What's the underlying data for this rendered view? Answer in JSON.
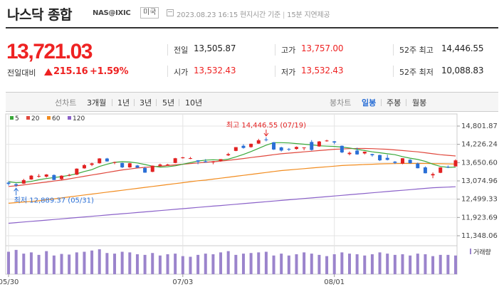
{
  "header": {
    "title": "나스닥 종합",
    "code": "NAS@IXIC",
    "country": "미국",
    "date_icon": "calendar-icon",
    "timestamp": "2023.08.23 16:15 현지시간 기준",
    "delay": "15분 지연제공"
  },
  "quote": {
    "price": "13,721.03",
    "change_label": "전일대비",
    "change_value": "215.16",
    "change_pct": "+1.59%",
    "direction": "up",
    "up_color": "#e22222"
  },
  "stats": {
    "prev_label": "전일",
    "prev_value": "13,505.87",
    "high_label": "고가",
    "high_value": "13,757.00",
    "w52high_label": "52주 최고",
    "w52high_value": "14,446.55",
    "open_label": "시가",
    "open_value": "13,532.43",
    "low_label": "저가",
    "low_value": "13,532.43",
    "w52low_label": "52주 최저",
    "w52low_value": "10,088.83"
  },
  "tabs": {
    "line_label": "선차트",
    "periods": [
      "3개월",
      "1년",
      "3년",
      "5년",
      "10년"
    ],
    "candle_label": "봉차트",
    "candles": [
      "일봉",
      "주봉",
      "월봉"
    ],
    "active_candle": "일봉"
  },
  "chart_data": {
    "type": "candlestick",
    "legend": [
      {
        "name": "5",
        "color": "#3aa83a"
      },
      {
        "name": "20",
        "color": "#e0483d"
      },
      {
        "name": "60",
        "color": "#f28c1f"
      },
      {
        "name": "120",
        "color": "#8b62c9"
      }
    ],
    "y_ticks": [
      "14,801.87",
      "14,226.24",
      "13,650.60",
      "13,074.96",
      "12,499.33",
      "11,923.69",
      "11,348.06"
    ],
    "ylim": [
      11348.06,
      14801.87
    ],
    "x_ticks": [
      "05/30",
      "07/03",
      "08/01"
    ],
    "annotations": {
      "high": "최고 14,446.55 (07/19)",
      "low": "최저 12,889.37 (05/31)"
    },
    "volume_label": "거래량",
    "candles": [
      {
        "d": "05/30",
        "o": 13020,
        "h": 13060,
        "l": 12930,
        "c": 12980
      },
      {
        "d": "05/31",
        "o": 12970,
        "h": 13000,
        "l": 12889,
        "c": 12935
      },
      {
        "d": "06/01",
        "o": 12990,
        "h": 13140,
        "l": 12980,
        "c": 13100
      },
      {
        "d": "06/02",
        "o": 13120,
        "h": 13260,
        "l": 13110,
        "c": 13240
      },
      {
        "d": "06/05",
        "o": 13230,
        "h": 13290,
        "l": 13180,
        "c": 13230
      },
      {
        "d": "06/06",
        "o": 13210,
        "h": 13290,
        "l": 13180,
        "c": 13276
      },
      {
        "d": "06/07",
        "o": 13260,
        "h": 13280,
        "l": 13100,
        "c": 13105
      },
      {
        "d": "06/08",
        "o": 13130,
        "h": 13250,
        "l": 13110,
        "c": 13239
      },
      {
        "d": "06/09",
        "o": 13250,
        "h": 13300,
        "l": 13220,
        "c": 13259
      },
      {
        "d": "06/12",
        "o": 13270,
        "h": 13470,
        "l": 13260,
        "c": 13461
      },
      {
        "d": "06/13",
        "o": 13470,
        "h": 13600,
        "l": 13460,
        "c": 13573
      },
      {
        "d": "06/14",
        "o": 13580,
        "h": 13650,
        "l": 13540,
        "c": 13626
      },
      {
        "d": "06/15",
        "o": 13630,
        "h": 13790,
        "l": 13620,
        "c": 13782
      },
      {
        "d": "06/16",
        "o": 13780,
        "h": 13800,
        "l": 13680,
        "c": 13689
      },
      {
        "d": "06/20",
        "o": 13650,
        "h": 13680,
        "l": 13600,
        "c": 13667
      },
      {
        "d": "06/21",
        "o": 13640,
        "h": 13650,
        "l": 13480,
        "c": 13502
      },
      {
        "d": "06/22",
        "o": 13500,
        "h": 13640,
        "l": 13490,
        "c": 13630
      },
      {
        "d": "06/23",
        "o": 13560,
        "h": 13580,
        "l": 13480,
        "c": 13492
      },
      {
        "d": "06/26",
        "o": 13480,
        "h": 13520,
        "l": 13330,
        "c": 13335
      },
      {
        "d": "06/27",
        "o": 13360,
        "h": 13560,
        "l": 13350,
        "c": 13555
      },
      {
        "d": "06/28",
        "o": 13550,
        "h": 13620,
        "l": 13530,
        "c": 13591
      },
      {
        "d": "06/29",
        "o": 13590,
        "h": 13610,
        "l": 13560,
        "c": 13591
      },
      {
        "d": "06/30",
        "o": 13640,
        "h": 13800,
        "l": 13630,
        "c": 13788
      },
      {
        "d": "07/03",
        "o": 13790,
        "h": 13830,
        "l": 13780,
        "c": 13816
      },
      {
        "d": "07/05",
        "o": 13780,
        "h": 13830,
        "l": 13760,
        "c": 13791
      },
      {
        "d": "07/06",
        "o": 13720,
        "h": 13730,
        "l": 13600,
        "c": 13679
      },
      {
        "d": "07/07",
        "o": 13690,
        "h": 13760,
        "l": 13660,
        "c": 13661
      },
      {
        "d": "07/10",
        "o": 13660,
        "h": 13700,
        "l": 13600,
        "c": 13685
      },
      {
        "d": "07/11",
        "o": 13700,
        "h": 13760,
        "l": 13680,
        "c": 13760
      },
      {
        "d": "07/12",
        "o": 13880,
        "h": 13960,
        "l": 13860,
        "c": 13918
      },
      {
        "d": "07/13",
        "o": 14020,
        "h": 14140,
        "l": 14010,
        "c": 14138
      },
      {
        "d": "07/14",
        "o": 14180,
        "h": 14230,
        "l": 14090,
        "c": 14113
      },
      {
        "d": "07/17",
        "o": 14140,
        "h": 14250,
        "l": 14120,
        "c": 14244
      },
      {
        "d": "07/18",
        "o": 14250,
        "h": 14400,
        "l": 14240,
        "c": 14353
      },
      {
        "d": "07/19",
        "o": 14380,
        "h": 14446,
        "l": 14320,
        "c": 14358
      },
      {
        "d": "07/20",
        "o": 14290,
        "h": 14300,
        "l": 14050,
        "c": 14063
      },
      {
        "d": "07/21",
        "o": 14130,
        "h": 14150,
        "l": 14000,
        "c": 14032
      },
      {
        "d": "07/24",
        "o": 14080,
        "h": 14110,
        "l": 14020,
        "c": 14058
      },
      {
        "d": "07/25",
        "o": 14080,
        "h": 14160,
        "l": 14060,
        "c": 14144
      },
      {
        "d": "07/26",
        "o": 14110,
        "h": 14130,
        "l": 14040,
        "c": 14127
      },
      {
        "d": "07/27",
        "o": 14300,
        "h": 14360,
        "l": 14030,
        "c": 14050
      },
      {
        "d": "07/28",
        "o": 14160,
        "h": 14330,
        "l": 14150,
        "c": 14316
      },
      {
        "d": "07/31",
        "o": 14330,
        "h": 14370,
        "l": 14310,
        "c": 14346
      },
      {
        "d": "08/01",
        "o": 14320,
        "h": 14330,
        "l": 14230,
        "c": 14284
      },
      {
        "d": "08/02",
        "o": 14180,
        "h": 14190,
        "l": 13950,
        "c": 13973
      },
      {
        "d": "08/03",
        "o": 13920,
        "h": 14000,
        "l": 13880,
        "c": 13959
      },
      {
        "d": "08/04",
        "o": 14030,
        "h": 14120,
        "l": 13900,
        "c": 13909
      },
      {
        "d": "08/07",
        "o": 13940,
        "h": 14000,
        "l": 13910,
        "c": 13994
      },
      {
        "d": "08/08",
        "o": 13920,
        "h": 13930,
        "l": 13840,
        "c": 13884
      },
      {
        "d": "08/09",
        "o": 13890,
        "h": 13900,
        "l": 13700,
        "c": 13723
      },
      {
        "d": "08/10",
        "o": 13800,
        "h": 13900,
        "l": 13720,
        "c": 13737
      },
      {
        "d": "08/11",
        "o": 13680,
        "h": 13700,
        "l": 13610,
        "c": 13645
      },
      {
        "d": "08/14",
        "o": 13620,
        "h": 13790,
        "l": 13600,
        "c": 13788
      },
      {
        "d": "08/15",
        "o": 13740,
        "h": 13760,
        "l": 13620,
        "c": 13632
      },
      {
        "d": "08/16",
        "o": 13620,
        "h": 13650,
        "l": 13470,
        "c": 13474
      },
      {
        "d": "08/17",
        "o": 13500,
        "h": 13530,
        "l": 13310,
        "c": 13316
      },
      {
        "d": "08/18",
        "o": 13250,
        "h": 13340,
        "l": 13160,
        "c": 13291
      },
      {
        "d": "08/21",
        "o": 13330,
        "h": 13500,
        "l": 13320,
        "c": 13498
      },
      {
        "d": "08/22",
        "o": 13520,
        "h": 13560,
        "l": 13480,
        "c": 13505
      },
      {
        "d": "08/23",
        "o": 13532,
        "h": 13757,
        "l": 13532,
        "c": 13721
      }
    ],
    "ma": {
      "5": [
        13050,
        13020,
        13030,
        13060,
        13110,
        13150,
        13180,
        13210,
        13250,
        13300,
        13370,
        13430,
        13530,
        13600,
        13660,
        13680,
        13670,
        13640,
        13590,
        13540,
        13510,
        13520,
        13550,
        13600,
        13650,
        13700,
        13730,
        13740,
        13730,
        13760,
        13830,
        13910,
        14000,
        14100,
        14200,
        14280,
        14280,
        14270,
        14250,
        14230,
        14210,
        14180,
        14170,
        14160,
        14140,
        14110,
        14070,
        14030,
        13990,
        13960,
        13930,
        13900,
        13840,
        13790,
        13750,
        13690,
        13600,
        13530,
        13500,
        13510
      ],
      "20": [
        12900,
        12920,
        12950,
        12980,
        13010,
        13040,
        13070,
        13100,
        13140,
        13180,
        13220,
        13260,
        13300,
        13340,
        13380,
        13420,
        13450,
        13480,
        13500,
        13520,
        13540,
        13560,
        13580,
        13600,
        13620,
        13640,
        13660,
        13680,
        13700,
        13720,
        13750,
        13780,
        13810,
        13840,
        13870,
        13900,
        13930,
        13950,
        13970,
        13990,
        14010,
        14030,
        14050,
        14070,
        14080,
        14090,
        14095,
        14095,
        14090,
        14080,
        14070,
        14050,
        14030,
        14010,
        13990,
        13960,
        13930,
        13900,
        13880,
        13860
      ],
      "60": [
        12370,
        12390,
        12410,
        12430,
        12450,
        12480,
        12510,
        12540,
        12570,
        12600,
        12630,
        12660,
        12690,
        12720,
        12750,
        12780,
        12810,
        12840,
        12870,
        12900,
        12930,
        12960,
        12990,
        13020,
        13050,
        13080,
        13100,
        13130,
        13160,
        13190,
        13220,
        13250,
        13280,
        13310,
        13340,
        13370,
        13400,
        13420,
        13440,
        13460,
        13480,
        13500,
        13520,
        13540,
        13560,
        13570,
        13580,
        13590,
        13600,
        13610,
        13615,
        13620,
        13625,
        13625,
        13625,
        13625,
        13620,
        13615,
        13610,
        13605
      ],
      "120": [
        11740,
        11760,
        11780,
        11800,
        11820,
        11840,
        11860,
        11880,
        11900,
        11920,
        11940,
        11960,
        11980,
        12000,
        12020,
        12040,
        12060,
        12080,
        12100,
        12120,
        12140,
        12160,
        12180,
        12200,
        12220,
        12240,
        12260,
        12280,
        12300,
        12320,
        12340,
        12360,
        12380,
        12400,
        12420,
        12440,
        12460,
        12480,
        12500,
        12520,
        12540,
        12560,
        12580,
        12600,
        12620,
        12640,
        12660,
        12680,
        12700,
        12720,
        12740,
        12760,
        12780,
        12800,
        12820,
        12840,
        12860,
        12870,
        12880,
        12890
      ]
    },
    "volume": [
      72,
      78,
      66,
      70,
      62,
      74,
      60,
      65,
      63,
      70,
      72,
      76,
      80,
      68,
      66,
      72,
      70,
      64,
      62,
      68,
      60,
      64,
      66,
      58,
      56,
      62,
      66,
      64,
      70,
      74,
      62,
      66,
      68,
      70,
      72,
      60,
      66,
      60,
      64,
      70,
      66,
      62,
      58,
      64,
      70,
      66,
      64,
      60,
      64,
      70,
      66,
      62,
      64,
      60,
      66,
      64,
      58,
      62,
      62,
      60
    ]
  }
}
